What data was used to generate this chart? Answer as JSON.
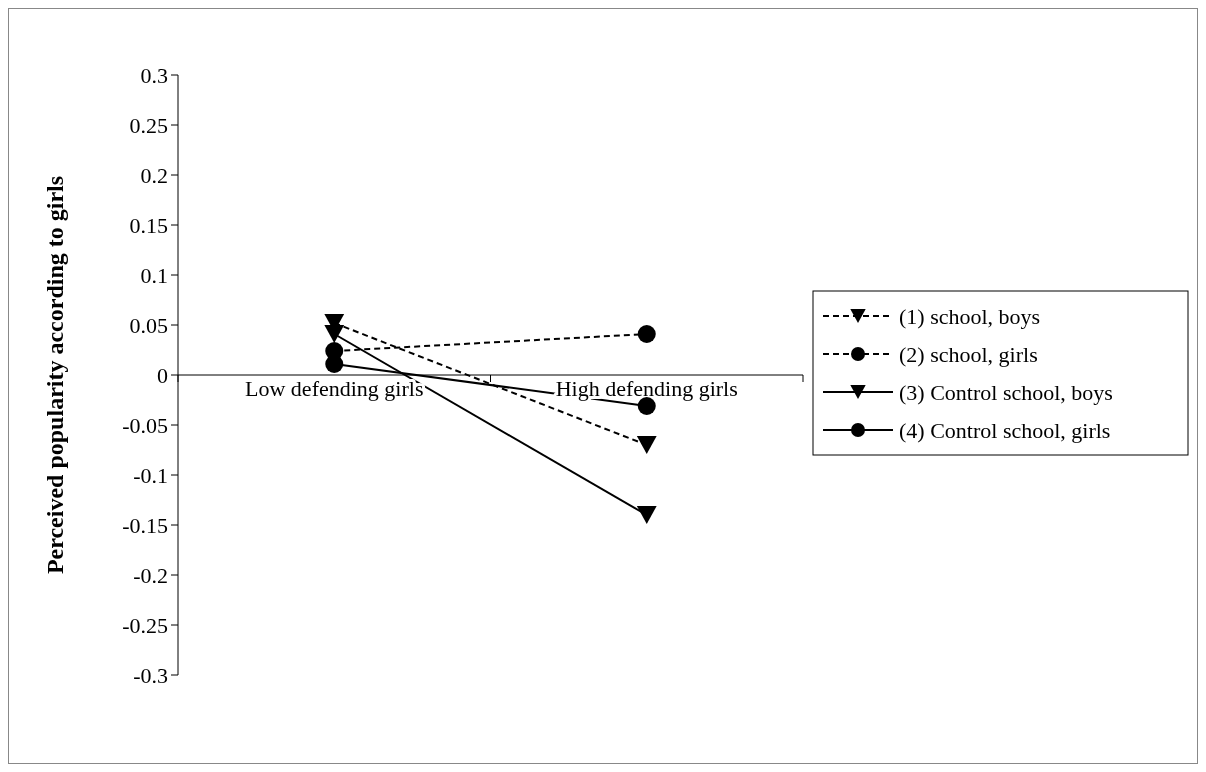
{
  "chart_data": {
    "type": "line",
    "ylabel": "Perceived popularity according to girls",
    "categories": [
      "Low defending girls",
      "High defending girls"
    ],
    "series": [
      {
        "name": "(1) school, boys",
        "color": "#000000",
        "values": [
          0.052,
          -0.07
        ],
        "line_style": "dashed",
        "marker": "triangle"
      },
      {
        "name": "(2) school, girls",
        "color": "#000000",
        "values": [
          0.024,
          0.041
        ],
        "line_style": "dashed",
        "marker": "circle"
      },
      {
        "name": "(3) Control school, boys",
        "color": "#000000",
        "values": [
          0.041,
          -0.14
        ],
        "line_style": "solid",
        "marker": "triangle"
      },
      {
        "name": "(4) Control school, girls",
        "color": "#000000",
        "values": [
          0.011,
          -0.031
        ],
        "line_style": "solid",
        "marker": "circle"
      }
    ],
    "ylim": [
      -0.3,
      0.3
    ],
    "yticks": [
      0.3,
      0.25,
      0.2,
      0.15,
      0.1,
      0.05,
      0,
      -0.05,
      -0.1,
      -0.15,
      -0.2,
      -0.25,
      -0.3
    ],
    "grid": false,
    "legend": "right"
  }
}
